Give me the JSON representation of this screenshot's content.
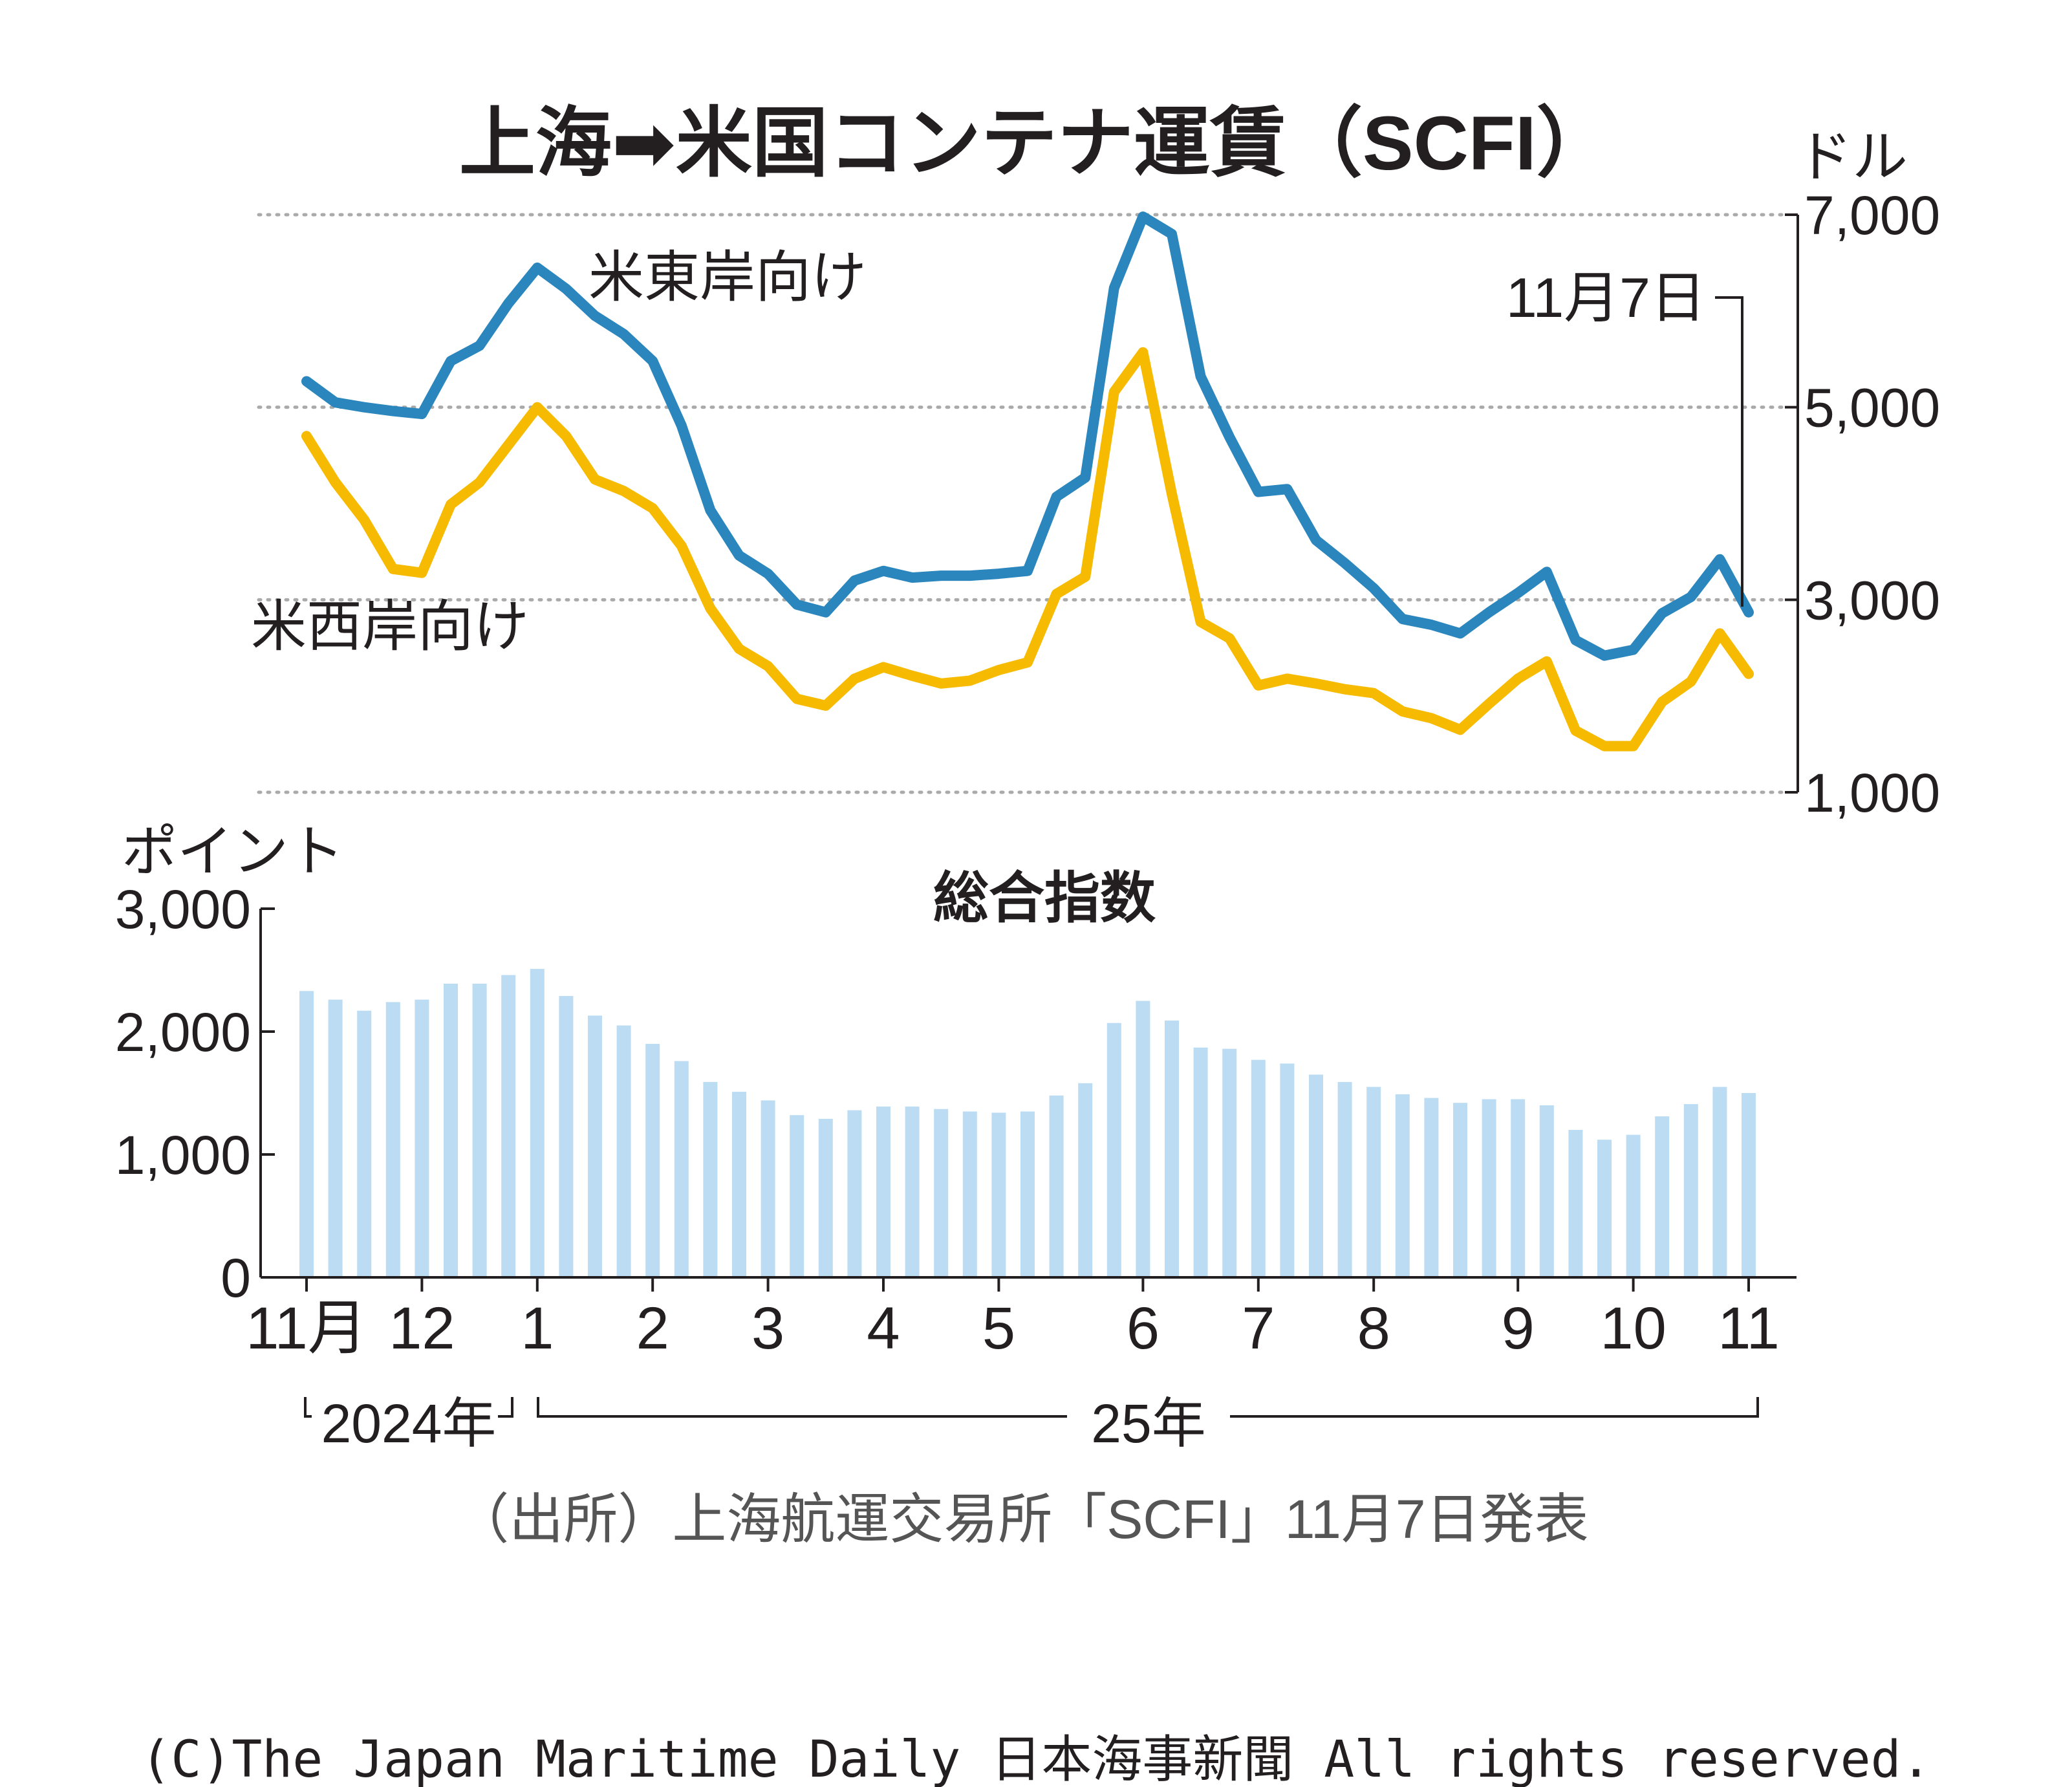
{
  "title": "上海➡米国コンテナ運賃（SCFI）",
  "source": "（出所）上海航運交易所「SCFI」11月7日発表",
  "copyright": "(C)The Japan Maritime Daily 日本海事新聞 All rights reserved.",
  "colors": {
    "east": "#2a86bd",
    "west": "#f6bb00",
    "bar": "#bcdcf4",
    "grid": "#aaaaaa",
    "text": "#231f20"
  },
  "chart_data": [
    {
      "type": "line",
      "title": "上海➡米国コンテナ運賃（SCFI）",
      "ylabel": "ドル",
      "ylim": [
        1000,
        7000
      ],
      "yticks": [
        "1,000",
        "3,000",
        "5,000",
        "7,000"
      ],
      "ytick_values": [
        1000,
        3000,
        5000,
        7000
      ],
      "annotation": "11月7日",
      "series": [
        {
          "name": "米東岸向け",
          "values": [
            5270,
            5050,
            5000,
            4960,
            4930,
            5480,
            5640,
            6080,
            6450,
            6230,
            5950,
            5760,
            5480,
            4810,
            3930,
            3460,
            3270,
            2950,
            2870,
            3200,
            3300,
            3230,
            3250,
            3250,
            3270,
            3300,
            4070,
            4270,
            6240,
            6980,
            6800,
            5320,
            4690,
            4120,
            4150,
            3620,
            3380,
            3120,
            2800,
            2740,
            2650,
            2870,
            3070,
            3290,
            2580,
            2420,
            2480,
            2860,
            3030,
            3420,
            2870
          ]
        },
        {
          "name": "米西岸向け",
          "values": [
            4700,
            4220,
            3830,
            3320,
            3280,
            3990,
            4220,
            4610,
            5000,
            4700,
            4250,
            4130,
            3950,
            3560,
            2910,
            2490,
            2310,
            1970,
            1900,
            2180,
            2300,
            2210,
            2130,
            2160,
            2270,
            2350,
            3060,
            3240,
            5160,
            5570,
            4100,
            2770,
            2600,
            2110,
            2180,
            2130,
            2070,
            2030,
            1840,
            1770,
            1650,
            1920,
            2180,
            2360,
            1640,
            1480,
            1480,
            1940,
            2150,
            2650,
            2230
          ]
        }
      ]
    },
    {
      "type": "bar",
      "title": "総合指数",
      "ylabel": "ポイント",
      "ylim": [
        0,
        3000
      ],
      "yticks": [
        "0",
        "1,000",
        "2,000",
        "3,000"
      ],
      "ytick_values": [
        0,
        1000,
        2000,
        3000
      ],
      "xticks": [
        {
          "label": "11月",
          "index": 0
        },
        {
          "label": "12",
          "index": 4
        },
        {
          "label": "1",
          "index": 8
        },
        {
          "label": "2",
          "index": 12
        },
        {
          "label": "3",
          "index": 16
        },
        {
          "label": "4",
          "index": 20
        },
        {
          "label": "5",
          "index": 24
        },
        {
          "label": "6",
          "index": 29
        },
        {
          "label": "7",
          "index": 33
        },
        {
          "label": "8",
          "index": 37
        },
        {
          "label": "9",
          "index": 42
        },
        {
          "label": "10",
          "index": 46
        },
        {
          "label": "11",
          "index": 50
        }
      ],
      "years": [
        "2024年",
        "25年"
      ],
      "series": [
        {
          "name": "総合指数",
          "values": [
            2330,
            2260,
            2170,
            2240,
            2260,
            2390,
            2390,
            2460,
            2510,
            2290,
            2130,
            2050,
            1900,
            1760,
            1590,
            1510,
            1440,
            1320,
            1290,
            1360,
            1390,
            1390,
            1370,
            1350,
            1340,
            1350,
            1480,
            1580,
            2070,
            2250,
            2090,
            1870,
            1860,
            1770,
            1740,
            1650,
            1590,
            1550,
            1490,
            1460,
            1420,
            1450,
            1450,
            1400,
            1200,
            1120,
            1160,
            1310,
            1410,
            1550,
            1500
          ]
        }
      ]
    }
  ]
}
